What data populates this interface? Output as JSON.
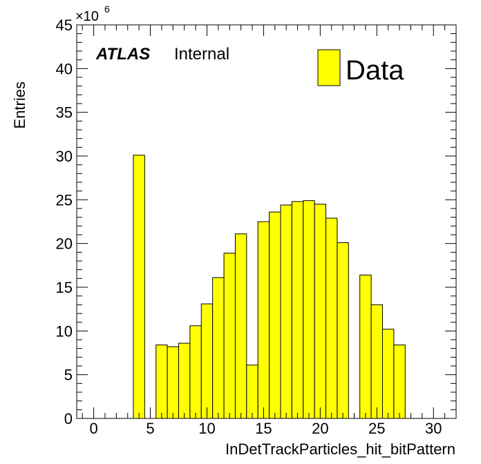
{
  "chart_data": {
    "type": "bar",
    "histogram": true,
    "bin_width": 1,
    "x": [
      0,
      1,
      2,
      3,
      4,
      5,
      6,
      7,
      8,
      9,
      10,
      11,
      12,
      13,
      14,
      15,
      16,
      17,
      18,
      19,
      20,
      21,
      22,
      23,
      24,
      25,
      26,
      27,
      28,
      29,
      30,
      31
    ],
    "values": [
      0,
      0,
      0,
      0,
      30.1,
      0,
      8.4,
      8.2,
      8.6,
      10.6,
      13.1,
      16.1,
      18.9,
      21.1,
      6.1,
      22.5,
      23.6,
      24.4,
      24.8,
      24.9,
      24.5,
      22.9,
      20.1,
      0,
      16.4,
      13.0,
      10.2,
      8.4,
      0,
      0,
      0,
      0
    ],
    "xlim": [
      -1.5,
      32
    ],
    "ylim": [
      0,
      45
    ],
    "x_ticks": [
      0,
      5,
      10,
      15,
      20,
      25,
      30
    ],
    "x_tick_labels": [
      "0",
      "5",
      "10",
      "15",
      "20",
      "25",
      "30"
    ],
    "y_ticks": [
      0,
      5,
      10,
      15,
      20,
      25,
      30,
      35,
      40,
      45
    ],
    "y_tick_labels": [
      "0",
      "5",
      "10",
      "15",
      "20",
      "25",
      "30",
      "35",
      "40",
      "45"
    ],
    "y_scale_label": "×10",
    "y_scale_exponent": "6",
    "xlabel": "InDetTrackParticles_hit_bitPattern",
    "ylabel": "Entries",
    "fill_color": "#ffff00",
    "line_color": "#000000",
    "series": [
      {
        "name": "Data",
        "values_ref": "values"
      }
    ],
    "legend": {
      "label": "Data",
      "placement": "top-right"
    },
    "atlas_label": {
      "main": "ATLAS",
      "sub": "Internal"
    }
  }
}
